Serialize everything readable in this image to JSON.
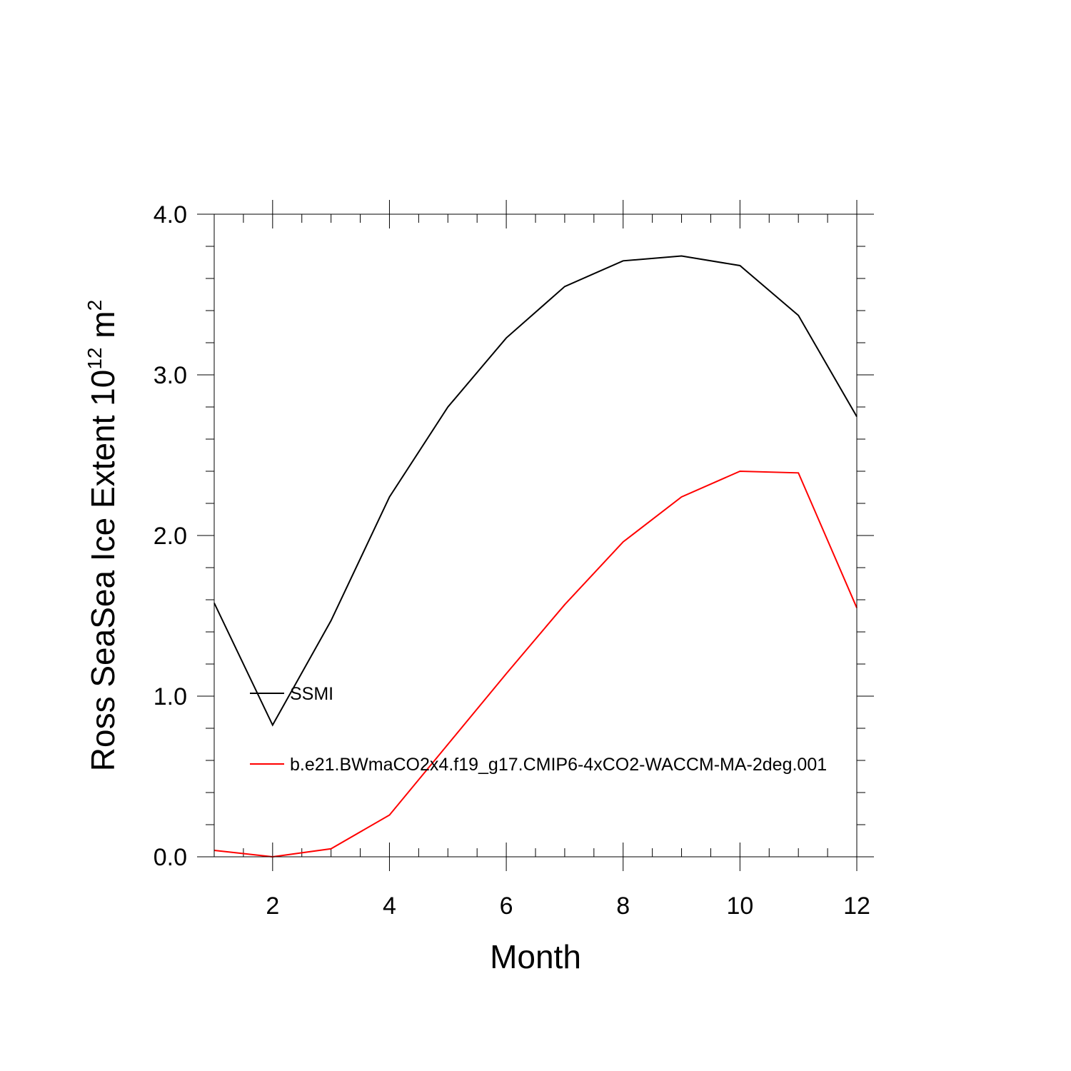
{
  "chart_data": {
    "type": "line",
    "title": "",
    "xlabel": "Month",
    "ylabel": {
      "prefix": "Ross SeaSea Ice Extent 10",
      "exponent": "12",
      "unit": " m",
      "unit_exponent": "2"
    },
    "xlim": [
      1,
      12
    ],
    "ylim": [
      0,
      4
    ],
    "xticks": [
      2,
      4,
      6,
      8,
      10,
      12
    ],
    "xtick_labels": [
      "2",
      "4",
      "6",
      "8",
      "10",
      "12"
    ],
    "yticks": [
      0,
      1,
      2,
      3,
      4
    ],
    "ytick_labels": [
      "0.0",
      "1.0",
      "2.0",
      "3.0",
      "4.0"
    ],
    "x": [
      1,
      2,
      3,
      4,
      5,
      6,
      7,
      8,
      9,
      10,
      11,
      12
    ],
    "series": [
      {
        "name": "SSMI",
        "color": "#000000",
        "values": [
          1.58,
          0.82,
          1.47,
          2.24,
          2.8,
          3.23,
          3.55,
          3.71,
          3.74,
          3.68,
          3.37,
          2.74
        ]
      },
      {
        "name": "b.e21.BWmaCO2x4.f19_g17.CMIP6-4xCO2-WACCM-MA-2deg.001",
        "color": "#ff0000",
        "values": [
          0.04,
          0.0,
          0.05,
          0.26,
          0.7,
          1.14,
          1.57,
          1.96,
          2.24,
          2.4,
          2.39,
          1.55
        ]
      }
    ],
    "legend_position": "left-center",
    "grid": false
  }
}
